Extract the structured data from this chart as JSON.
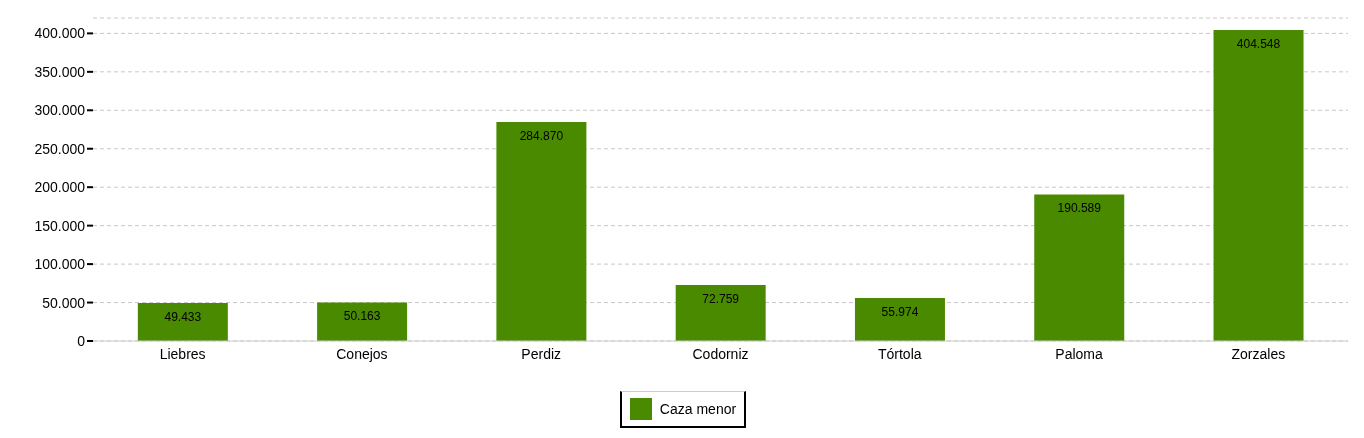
{
  "chart_data": {
    "type": "bar",
    "categories": [
      "Liebres",
      "Conejos",
      "Perdiz",
      "Codorniz",
      "Tórtola",
      "Paloma",
      "Zorzales"
    ],
    "series": [
      {
        "name": "Caza menor",
        "color": "#4a8a00",
        "values": [
          49433,
          50163,
          284870,
          72759,
          55974,
          190589,
          404548
        ],
        "value_labels": [
          "49.433",
          "50.163",
          "284.870",
          "72.759",
          "55.974",
          "190.589",
          "404.548"
        ]
      }
    ],
    "ylim": [
      0,
      420000
    ],
    "yticks": [
      0,
      {
        "value": 50000,
        "label": "50.000"
      },
      {
        "value": 100000,
        "label": "100.000"
      },
      {
        "value": 150000,
        "label": "150.000"
      },
      {
        "value": 200000,
        "label": "200.000"
      },
      {
        "value": 250000,
        "label": "250.000"
      },
      {
        "value": 300000,
        "label": "300.000"
      },
      {
        "value": 350000,
        "label": "350.000"
      },
      {
        "value": 400000,
        "label": "400.000"
      }
    ],
    "grid": "y",
    "legend": "bottom"
  }
}
